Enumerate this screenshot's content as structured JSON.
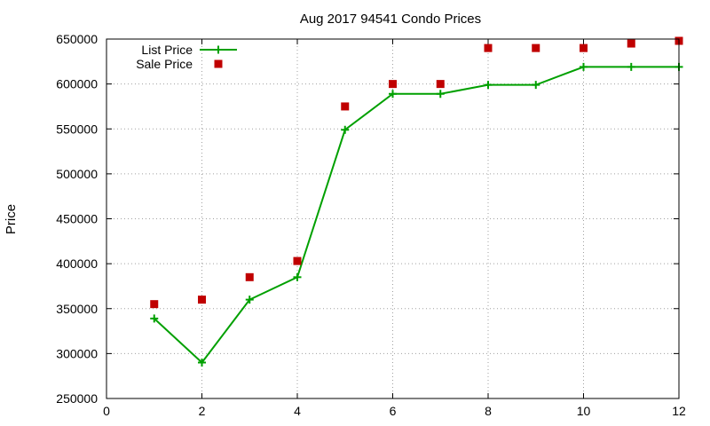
{
  "chart_data": {
    "type": "line",
    "title": "Aug 2017 94541 Condo Prices",
    "xlabel": "",
    "ylabel": "Price",
    "xlim": [
      0,
      12
    ],
    "ylim": [
      250000,
      650000
    ],
    "xticks": [
      0,
      2,
      4,
      6,
      8,
      10,
      12
    ],
    "yticks": [
      250000,
      300000,
      350000,
      400000,
      450000,
      500000,
      550000,
      600000,
      650000
    ],
    "grid": true,
    "legend_position": "top-left",
    "series": [
      {
        "name": "List Price",
        "style": "line+cross",
        "color": "#00a000",
        "x": [
          1,
          2,
          3,
          4,
          5,
          6,
          7,
          8,
          9,
          10,
          11,
          12
        ],
        "values": [
          339000,
          290000,
          360000,
          385000,
          549000,
          589000,
          589000,
          599000,
          599000,
          619000,
          619000,
          619000
        ]
      },
      {
        "name": "Sale Price",
        "style": "square",
        "color": "#c00000",
        "x": [
          1,
          2,
          3,
          4,
          5,
          6,
          7,
          8,
          9,
          10,
          11,
          12
        ],
        "values": [
          355000,
          360000,
          385000,
          403000,
          575000,
          600000,
          600000,
          640000,
          640000,
          640000,
          645000,
          648000
        ]
      }
    ]
  }
}
